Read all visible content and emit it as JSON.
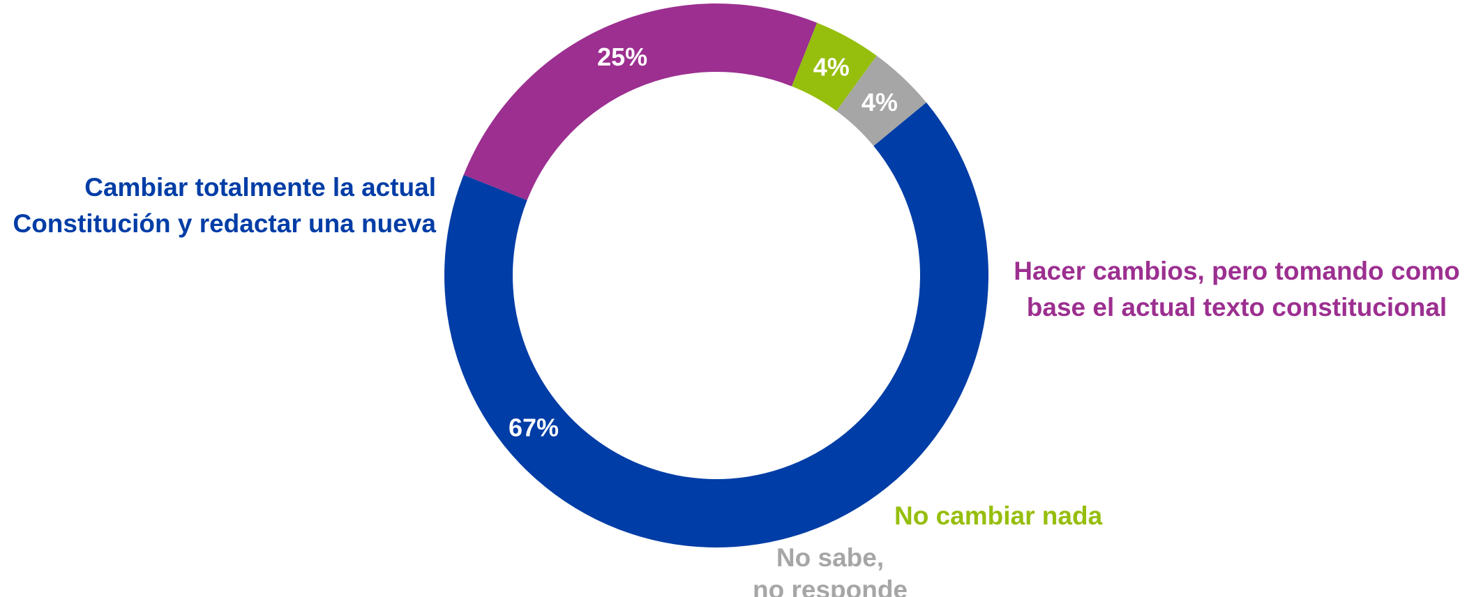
{
  "chart_data": {
    "type": "pie",
    "donut": true,
    "categories": [
      "Cambiar totalmente la actual Constitución y redactar una nueva",
      "Hacer cambios, pero tomando como base el actual texto constitucional",
      "No cambiar nada",
      "No sabe, no responde"
    ],
    "values": [
      67,
      25,
      4,
      4
    ],
    "value_labels": [
      "67%",
      "25%",
      "4%",
      "4%"
    ],
    "colors": [
      "#003DA6",
      "#9C2F90",
      "#96BE0D",
      "#A6A6A6"
    ],
    "labels": [
      {
        "lines": [
          "Cambiar totalmente la actual",
          "Constitución y redactar una nueva"
        ]
      },
      {
        "lines": [
          "Hacer cambios, pero tomando como",
          "base el actual texto constitucional"
        ]
      },
      {
        "lines": [
          "No cambiar nada"
        ]
      },
      {
        "lines": [
          "No sabe,",
          "no responde"
        ]
      }
    ]
  }
}
